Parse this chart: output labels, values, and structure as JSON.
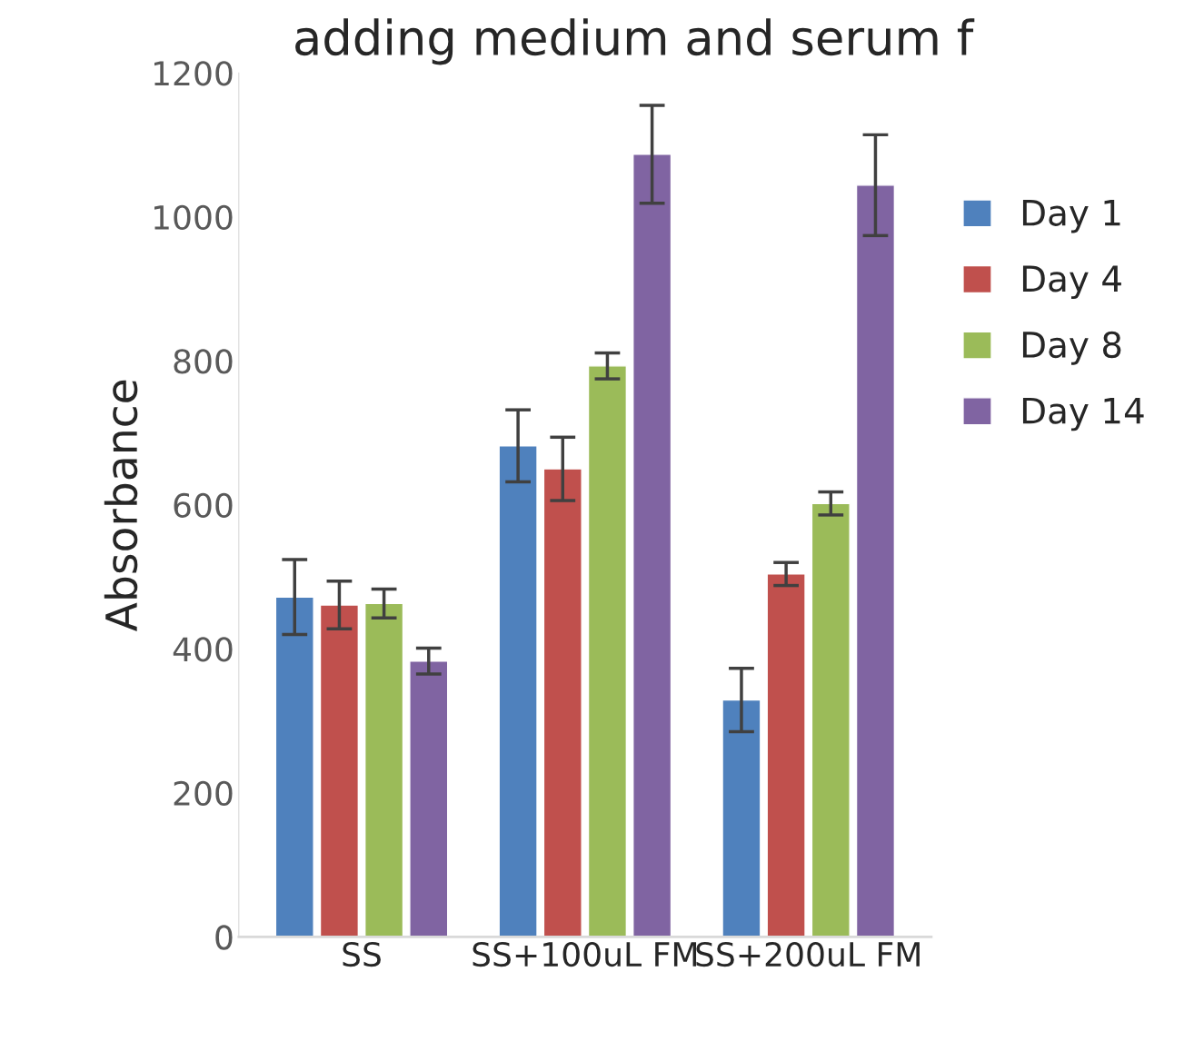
{
  "chart_data": {
    "type": "bar",
    "title": "adding medium and serum f",
    "ylabel": "Absorbance",
    "categories": [
      "SS",
      "SS+100uL FM",
      "SS+200uL FM"
    ],
    "series": [
      {
        "name": "Day 1",
        "color": "#4f81bd",
        "values": [
          472,
          682,
          329
        ],
        "errors": [
          52,
          50,
          44
        ]
      },
      {
        "name": "Day 4",
        "color": "#c0504d",
        "values": [
          461,
          650,
          504
        ],
        "errors": [
          33,
          44,
          16
        ]
      },
      {
        "name": "Day 8",
        "color": "#9bbb59",
        "values": [
          463,
          793,
          602
        ],
        "errors": [
          20,
          18,
          16
        ]
      },
      {
        "name": "Day 14",
        "color": "#8064a2",
        "values": [
          383,
          1087,
          1044
        ],
        "errors": [
          18,
          68,
          70
        ]
      }
    ],
    "ylim": [
      0,
      1200
    ],
    "yticks": [
      0,
      200,
      400,
      600,
      800,
      1000,
      1200
    ],
    "grid": false,
    "legend": "right"
  }
}
